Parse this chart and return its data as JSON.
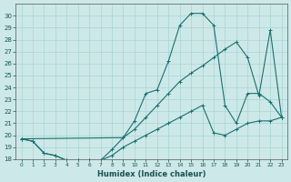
{
  "xlabel": "Humidex (Indice chaleur)",
  "background_color": "#cde8e8",
  "line_color": "#1a7070",
  "xlim": [
    -0.5,
    23.5
  ],
  "ylim": [
    18,
    31
  ],
  "xticks": [
    0,
    1,
    2,
    3,
    4,
    5,
    6,
    7,
    8,
    9,
    10,
    11,
    12,
    13,
    14,
    15,
    16,
    17,
    18,
    19,
    20,
    21,
    22,
    23
  ],
  "yticks": [
    18,
    19,
    20,
    21,
    22,
    23,
    24,
    25,
    26,
    27,
    28,
    29,
    30
  ],
  "line1_x": [
    0,
    1,
    2,
    3,
    4,
    5,
    6,
    7,
    8,
    9,
    10,
    11,
    12,
    13,
    14,
    15,
    16,
    17,
    18,
    19,
    20,
    21,
    22,
    23
  ],
  "line1_y": [
    19.7,
    19.5,
    18.5,
    18.3,
    17.9,
    17.9,
    17.9,
    17.9,
    18.3,
    19.0,
    19.5,
    20.0,
    20.5,
    21.0,
    21.5,
    22.0,
    22.5,
    20.2,
    20.0,
    20.5,
    21.0,
    21.2,
    21.2,
    21.5
  ],
  "line2_x": [
    0,
    1,
    2,
    3,
    4,
    5,
    6,
    7,
    8,
    9,
    10,
    11,
    12,
    13,
    14,
    15,
    16,
    17,
    18,
    19,
    20,
    21,
    22,
    23
  ],
  "line2_y": [
    19.7,
    19.5,
    18.5,
    18.3,
    17.9,
    17.9,
    17.9,
    17.9,
    18.8,
    19.8,
    21.2,
    23.5,
    23.8,
    26.2,
    29.2,
    30.2,
    30.2,
    29.2,
    22.5,
    21.0,
    23.5,
    23.5,
    22.8,
    21.5
  ],
  "line3_x": [
    0,
    9,
    10,
    11,
    12,
    13,
    14,
    15,
    16,
    17,
    18,
    19,
    20,
    21,
    22,
    23
  ],
  "line3_y": [
    19.7,
    19.8,
    20.5,
    21.5,
    22.5,
    23.5,
    24.5,
    25.2,
    25.8,
    26.5,
    27.2,
    27.8,
    26.5,
    23.3,
    28.8,
    21.5
  ]
}
